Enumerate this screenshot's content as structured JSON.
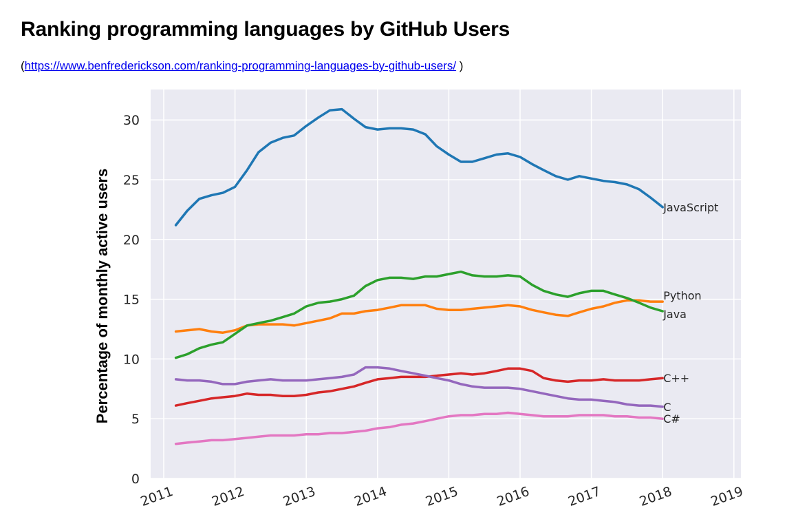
{
  "header": {
    "title": "Ranking programming languages by GitHub Users",
    "source_open": "(",
    "source_url_text": "https://www.benfrederickson.com/ranking-programming-languages-by-github-users/",
    "source_close": " )"
  },
  "colors": {
    "plot_background": "#eaeaf2",
    "grid": "#ffffff",
    "javascript": "#1f77b4",
    "python": "#ff7f0e",
    "java": "#2ca02c",
    "cpp": "#d62728",
    "c": "#9467bd",
    "csharp": "#e377c2"
  },
  "chart_data": {
    "type": "line",
    "title": "",
    "xlabel": "",
    "ylabel": "Percentage of monthly active users",
    "xlim": [
      2010.9,
      2019.1
    ],
    "ylim": [
      0,
      32
    ],
    "xticks": [
      2011,
      2012,
      2013,
      2014,
      2015,
      2016,
      2017,
      2018,
      2019
    ],
    "x_tick_labels": [
      "2011",
      "2012",
      "2013",
      "2014",
      "2015",
      "2016",
      "2017",
      "2018",
      "2019"
    ],
    "yticks": [
      0,
      5,
      10,
      15,
      20,
      25,
      30
    ],
    "y_tick_labels": [
      "0",
      "5",
      "10",
      "15",
      "20",
      "25",
      "30"
    ],
    "grid": true,
    "x": [
      2011.17,
      2011.33,
      2011.5,
      2011.67,
      2011.83,
      2012.0,
      2012.17,
      2012.33,
      2012.5,
      2012.67,
      2012.83,
      2013.0,
      2013.17,
      2013.33,
      2013.5,
      2013.67,
      2013.83,
      2014.0,
      2014.17,
      2014.33,
      2014.5,
      2014.67,
      2014.83,
      2015.0,
      2015.17,
      2015.33,
      2015.5,
      2015.67,
      2015.83,
      2016.0,
      2016.17,
      2016.33,
      2016.5,
      2016.67,
      2016.83,
      2017.0,
      2017.17,
      2017.33,
      2017.5,
      2017.67,
      2017.83,
      2018.0
    ],
    "series": [
      {
        "name": "JavaScript",
        "label": "JavaScript",
        "color_key": "javascript",
        "values": [
          21.2,
          22.4,
          23.4,
          23.7,
          23.9,
          24.4,
          25.8,
          27.3,
          28.1,
          28.5,
          28.7,
          29.5,
          30.2,
          30.8,
          30.9,
          30.1,
          29.4,
          29.2,
          29.3,
          29.3,
          29.2,
          28.8,
          27.8,
          27.1,
          26.5,
          26.5,
          26.8,
          27.1,
          27.2,
          26.9,
          26.3,
          25.8,
          25.3,
          25.0,
          25.3,
          25.1,
          24.9,
          24.8,
          24.6,
          24.2,
          23.5,
          22.7
        ]
      },
      {
        "name": "Python",
        "label": "Python",
        "color_key": "python",
        "values": [
          12.3,
          12.4,
          12.5,
          12.3,
          12.2,
          12.4,
          12.8,
          12.9,
          12.9,
          12.9,
          12.8,
          13.0,
          13.2,
          13.4,
          13.8,
          13.8,
          14.0,
          14.1,
          14.3,
          14.5,
          14.5,
          14.5,
          14.2,
          14.1,
          14.1,
          14.2,
          14.3,
          14.4,
          14.5,
          14.4,
          14.1,
          13.9,
          13.7,
          13.6,
          13.9,
          14.2,
          14.4,
          14.7,
          14.9,
          14.9,
          14.8,
          14.8
        ]
      },
      {
        "name": "Java",
        "label": "Java",
        "color_key": "java",
        "values": [
          10.1,
          10.4,
          10.9,
          11.2,
          11.4,
          12.1,
          12.8,
          13.0,
          13.2,
          13.5,
          13.8,
          14.4,
          14.7,
          14.8,
          15.0,
          15.3,
          16.1,
          16.6,
          16.8,
          16.8,
          16.7,
          16.9,
          16.9,
          17.1,
          17.3,
          17.0,
          16.9,
          16.9,
          17.0,
          16.9,
          16.2,
          15.7,
          15.4,
          15.2,
          15.5,
          15.7,
          15.7,
          15.4,
          15.1,
          14.7,
          14.3,
          14.0
        ]
      },
      {
        "name": "C++",
        "label": "C++",
        "color_key": "cpp",
        "values": [
          6.1,
          6.3,
          6.5,
          6.7,
          6.8,
          6.9,
          7.1,
          7.0,
          7.0,
          6.9,
          6.9,
          7.0,
          7.2,
          7.3,
          7.5,
          7.7,
          8.0,
          8.3,
          8.4,
          8.5,
          8.5,
          8.5,
          8.6,
          8.7,
          8.8,
          8.7,
          8.8,
          9.0,
          9.2,
          9.2,
          9.0,
          8.4,
          8.2,
          8.1,
          8.2,
          8.2,
          8.3,
          8.2,
          8.2,
          8.2,
          8.3,
          8.4
        ]
      },
      {
        "name": "C",
        "label": "C",
        "color_key": "c",
        "values": [
          8.3,
          8.2,
          8.2,
          8.1,
          7.9,
          7.9,
          8.1,
          8.2,
          8.3,
          8.2,
          8.2,
          8.2,
          8.3,
          8.4,
          8.5,
          8.7,
          9.3,
          9.3,
          9.2,
          9.0,
          8.8,
          8.6,
          8.4,
          8.2,
          7.9,
          7.7,
          7.6,
          7.6,
          7.6,
          7.5,
          7.3,
          7.1,
          6.9,
          6.7,
          6.6,
          6.6,
          6.5,
          6.4,
          6.2,
          6.1,
          6.1,
          6.0
        ]
      },
      {
        "name": "C#",
        "label": "C#",
        "color_key": "csharp",
        "values": [
          2.9,
          3.0,
          3.1,
          3.2,
          3.2,
          3.3,
          3.4,
          3.5,
          3.6,
          3.6,
          3.6,
          3.7,
          3.7,
          3.8,
          3.8,
          3.9,
          4.0,
          4.2,
          4.3,
          4.5,
          4.6,
          4.8,
          5.0,
          5.2,
          5.3,
          5.3,
          5.4,
          5.4,
          5.5,
          5.4,
          5.3,
          5.2,
          5.2,
          5.2,
          5.3,
          5.3,
          5.3,
          5.2,
          5.2,
          5.1,
          5.1,
          5.0
        ]
      }
    ]
  }
}
